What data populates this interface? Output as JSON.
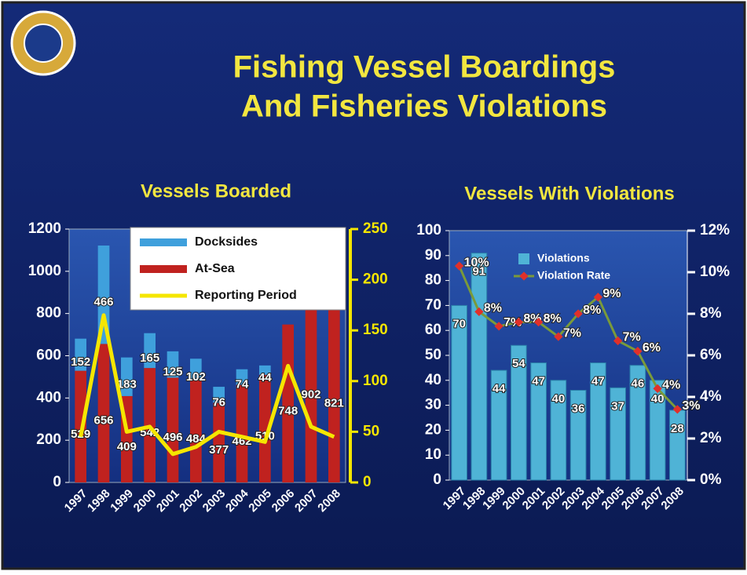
{
  "title_lines": [
    "Fishing Vessel Boardings",
    "And Fisheries Violations"
  ],
  "chart_data": [
    {
      "type": "stacked_bar_line",
      "title": "Vessels Boarded",
      "categories": [
        "1997",
        "1998",
        "1999",
        "2000",
        "2001",
        "2002",
        "2003",
        "2004",
        "2005",
        "2006",
        "2007",
        "2008"
      ],
      "series": [
        {
          "name": "Docksides",
          "kind": "bar",
          "color": "#3fa0dc",
          "values": [
            152,
            466,
            183,
            165,
            125,
            102,
            76,
            74,
            44,
            null,
            null,
            null
          ]
        },
        {
          "name": "At-Sea",
          "kind": "bar",
          "color": "#c0221f",
          "values": [
            529,
            656,
            409,
            542,
            496,
            484,
            377,
            462,
            510,
            748,
            902,
            821
          ]
        },
        {
          "name": "Reporting Period",
          "kind": "line",
          "axis": "y2",
          "color": "#f5e600",
          "values": [
            45,
            165,
            50,
            55,
            28,
            35,
            50,
            45,
            40,
            115,
            55,
            45
          ]
        }
      ],
      "ylim": [
        0,
        1200
      ],
      "yticks": [
        0,
        200,
        400,
        600,
        800,
        1000,
        1200
      ],
      "y2lim": [
        0,
        250
      ],
      "y2ticks": [
        0,
        50,
        100,
        150,
        200,
        250
      ]
    },
    {
      "type": "bar_line",
      "title": "Vessels With Violations",
      "categories": [
        "1997",
        "1998",
        "1999",
        "2000",
        "2001",
        "2002",
        "2003",
        "2004",
        "2005",
        "2006",
        "2007",
        "2008"
      ],
      "series": [
        {
          "name": "Violations",
          "kind": "bar",
          "color": "#4fb3d6",
          "values": [
            70,
            91,
            44,
            54,
            47,
            40,
            36,
            47,
            37,
            46,
            40,
            28
          ]
        },
        {
          "name": "Violation Rate",
          "kind": "line",
          "axis": "y2",
          "color": "#7a9a3a",
          "marker_color": "#e0302a",
          "values": [
            10.3,
            8.1,
            7.4,
            7.6,
            7.6,
            6.9,
            8.0,
            8.8,
            6.7,
            6.2,
            4.4,
            3.4
          ],
          "value_labels": [
            "10%",
            "8%",
            "7%",
            "8%",
            "8%",
            "7%",
            "8%",
            "9%",
            "7%",
            "6%",
            "4%",
            "3%"
          ]
        }
      ],
      "ylim": [
        0,
        100
      ],
      "yticks": [
        0,
        10,
        20,
        30,
        40,
        50,
        60,
        70,
        80,
        90,
        100
      ],
      "y2lim": [
        0,
        12
      ],
      "y2ticks": [
        {
          "value": 0,
          "label": "0%"
        },
        {
          "value": 2,
          "label": "2%"
        },
        {
          "value": 4,
          "label": "4%"
        },
        {
          "value": 6,
          "label": "6%"
        },
        {
          "value": 8,
          "label": "8%"
        },
        {
          "value": 10,
          "label": "10%"
        },
        {
          "value": 12,
          "label": "12%"
        }
      ]
    }
  ]
}
